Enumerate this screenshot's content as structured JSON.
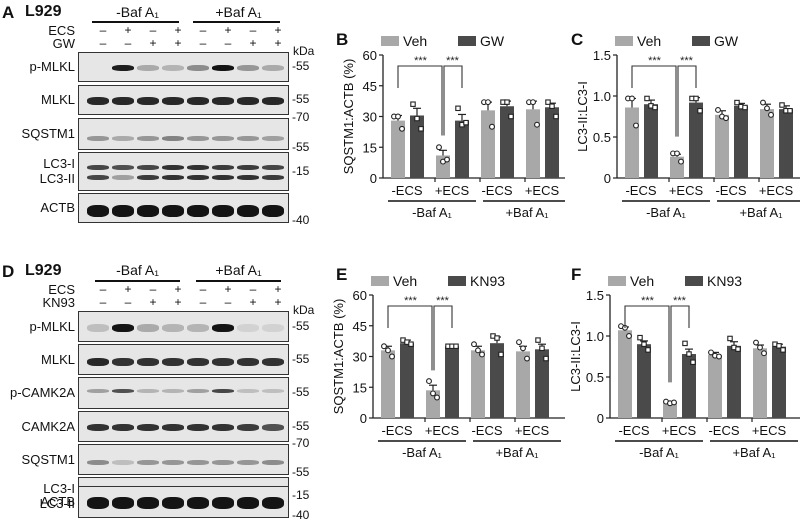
{
  "colors": {
    "veh": "#a8a8a8",
    "treat": "#4a4a4a",
    "blot_bg": "#e4e4e4",
    "band": "#1a1a1a"
  },
  "panelA": {
    "letter": "A",
    "cell_line": "L929",
    "groups": [
      "-Baf A₁",
      "+Baf A₁"
    ],
    "rows": [
      {
        "label": "ECS",
        "signs": [
          "–",
          "+",
          "–",
          "+",
          "–",
          "+",
          "–",
          "+"
        ]
      },
      {
        "label": "GW",
        "signs": [
          "–",
          "–",
          "+",
          "+",
          "–",
          "–",
          "+",
          "+"
        ]
      }
    ],
    "kda_header": "kDa",
    "blots": [
      {
        "label": "p-MLKL",
        "markers": [
          "-55"
        ]
      },
      {
        "label": "MLKL",
        "markers": [
          "-55"
        ]
      },
      {
        "label": "SQSTM1",
        "markers": [
          "-70",
          "-55"
        ]
      },
      {
        "label": "LC3-I\nLC3-II",
        "label1": "LC3-I",
        "label2": "LC3-II",
        "markers": [
          "-15"
        ]
      },
      {
        "label": "ACTB",
        "markers": [
          "-40"
        ]
      }
    ]
  },
  "panelD": {
    "letter": "D",
    "cell_line": "L929",
    "groups": [
      "-Baf A₁",
      "+Baf A₁"
    ],
    "rows": [
      {
        "label": "ECS",
        "signs": [
          "–",
          "+",
          "–",
          "+",
          "–",
          "+",
          "–",
          "+"
        ]
      },
      {
        "label": "KN93",
        "signs": [
          "–",
          "–",
          "+",
          "+",
          "–",
          "–",
          "+",
          "+"
        ]
      }
    ],
    "kda_header": "kDa",
    "blots": [
      {
        "label": "p-MLKL",
        "markers": [
          "-55"
        ]
      },
      {
        "label": "MLKL",
        "markers": [
          "-55"
        ]
      },
      {
        "label": "p-CAMK2A",
        "markers": [
          "-55"
        ]
      },
      {
        "label": "CAMK2A",
        "markers": [
          "-55"
        ]
      },
      {
        "label": "SQSTM1",
        "markers": [
          "-70",
          "-55"
        ]
      },
      {
        "label": "LC3-I\nLC3-II",
        "label1": "LC3-I",
        "label2": "LC3-II",
        "markers": [
          "-15"
        ]
      },
      {
        "label": "ACTB",
        "markers": [
          "-40"
        ]
      }
    ]
  },
  "chart_data": [
    {
      "panel": "B",
      "type": "bar",
      "title": "",
      "ylabel": "SQSTM1:ACTB (%)",
      "xlabel": "",
      "ylim": [
        0,
        60
      ],
      "yticks": [
        "0",
        "15",
        "30",
        "45",
        "60"
      ],
      "categories": [
        "-ECS",
        "+ECS",
        "-ECS",
        "+ECS"
      ],
      "group_labels": [
        "-Baf A₁",
        "+Baf A₁"
      ],
      "legend": [
        "Veh",
        "GW"
      ],
      "series": [
        {
          "name": "Veh",
          "values": [
            28,
            11,
            33,
            33.5
          ],
          "errors": [
            2.5,
            2.5,
            4,
            4
          ],
          "points": [
            [
              30,
              30,
              24
            ],
            [
              15,
              8,
              9
            ],
            [
              37,
              37,
              25
            ],
            [
              37,
              37,
              26
            ]
          ]
        },
        {
          "name": "GW",
          "values": [
            30.5,
            28,
            35,
            34.5
          ],
          "errors": [
            3.5,
            3,
            2.5,
            2
          ],
          "points": [
            [
              36,
              29,
              24
            ],
            [
              34,
              26,
              27
            ],
            [
              37,
              37,
              30
            ],
            [
              37,
              35,
              30
            ]
          ]
        }
      ],
      "significance": [
        {
          "from": "Veh -ECS (-Baf)",
          "to": "Veh +ECS (-Baf)",
          "label": "***"
        },
        {
          "from": "Veh +ECS (-Baf)",
          "to": "GW +ECS (-Baf)",
          "label": "***"
        }
      ],
      "grid": false,
      "legend_position": "top"
    },
    {
      "panel": "C",
      "type": "bar",
      "title": "",
      "ylabel": "LC3-II:LC3-I",
      "xlabel": "",
      "ylim": [
        0,
        1.5
      ],
      "yticks": [
        "0",
        "0.5",
        "1.0",
        "1.5"
      ],
      "categories": [
        "-ECS",
        "+ECS",
        "-ECS",
        "+ECS"
      ],
      "group_labels": [
        "-Baf A₁",
        "+Baf A₁"
      ],
      "legend": [
        "Veh",
        "GW"
      ],
      "series": [
        {
          "name": "Veh",
          "values": [
            0.86,
            0.26,
            0.77,
            0.84
          ],
          "errors": [
            0.11,
            0.03,
            0.05,
            0.06
          ],
          "points": [
            [
              0.97,
              0.97,
              0.64
            ],
            [
              0.3,
              0.3,
              0.2
            ],
            [
              0.83,
              0.75,
              0.73
            ],
            [
              0.92,
              0.85,
              0.77
            ]
          ]
        },
        {
          "name": "GW",
          "values": [
            0.9,
            0.92,
            0.88,
            0.84
          ],
          "errors": [
            0.05,
            0.06,
            0.03,
            0.04
          ],
          "points": [
            [
              0.97,
              0.88,
              0.86
            ],
            [
              0.97,
              0.97,
              0.82
            ],
            [
              0.92,
              0.87,
              0.86
            ],
            [
              0.89,
              0.82,
              0.82
            ]
          ]
        }
      ],
      "significance": [
        {
          "from": "Veh -ECS (-Baf)",
          "to": "Veh +ECS (-Baf)",
          "label": "***"
        },
        {
          "from": "Veh +ECS (-Baf)",
          "to": "GW +ECS (-Baf)",
          "label": "***"
        }
      ],
      "grid": false,
      "legend_position": "top"
    },
    {
      "panel": "E",
      "type": "bar",
      "title": "",
      "ylabel": "SQSTM1:ACTB (%)",
      "xlabel": "",
      "ylim": [
        0,
        60
      ],
      "yticks": [
        "0",
        "15",
        "30",
        "45",
        "60"
      ],
      "categories": [
        "-ECS",
        "+ECS",
        "-ECS",
        "+ECS"
      ],
      "group_labels": [
        "-Baf A₁",
        "+Baf A₁"
      ],
      "legend": [
        "Veh",
        "KN93"
      ],
      "series": [
        {
          "name": "Veh",
          "values": [
            33,
            13.5,
            33,
            32.5
          ],
          "errors": [
            2,
            2.5,
            2,
            2.5
          ],
          "points": [
            [
              35,
              33,
              30
            ],
            [
              18,
              12,
              10
            ],
            [
              36,
              33,
              31
            ],
            [
              37,
              34,
              29
            ]
          ]
        },
        {
          "name": "KN93",
          "values": [
            36.5,
            35,
            36.5,
            33.5
          ],
          "errors": [
            1.5,
            0.5,
            3,
            2.5
          ],
          "points": [
            [
              38,
              37,
              36
            ],
            [
              35,
              35,
              35
            ],
            [
              40,
              39,
              31
            ],
            [
              38,
              34,
              29
            ]
          ]
        }
      ],
      "significance": [
        {
          "from": "Veh -ECS (-Baf)",
          "to": "Veh +ECS (-Baf)",
          "label": "***"
        },
        {
          "from": "Veh +ECS (-Baf)",
          "to": "KN93 +ECS (-Baf)",
          "label": "***"
        }
      ],
      "grid": false,
      "legend_position": "top"
    },
    {
      "panel": "F",
      "type": "bar",
      "title": "",
      "ylabel": "LC3-II:LC3-I",
      "xlabel": "",
      "ylim": [
        0,
        1.5
      ],
      "yticks": [
        "0",
        "0.5",
        "1.0",
        "1.5"
      ],
      "categories": [
        "-ECS",
        "+ECS",
        "-ECS",
        "+ECS"
      ],
      "group_labels": [
        "-Baf A₁",
        "+Baf A₁"
      ],
      "legend": [
        "Veh",
        "KN93"
      ],
      "series": [
        {
          "name": "Veh",
          "values": [
            1.07,
            0.19,
            0.77,
            0.85
          ],
          "errors": [
            0.04,
            0.01,
            0.03,
            0.04
          ],
          "points": [
            [
              1.12,
              1.1,
              1.0
            ],
            [
              0.2,
              0.18,
              0.19
            ],
            [
              0.8,
              0.76,
              0.75
            ],
            [
              0.92,
              0.86,
              0.79
            ]
          ]
        },
        {
          "name": "KN93",
          "values": [
            0.9,
            0.78,
            0.88,
            0.87
          ],
          "errors": [
            0.04,
            0.06,
            0.05,
            0.03
          ],
          "points": [
            [
              0.98,
              0.9,
              0.83
            ],
            [
              0.91,
              0.78,
              0.68
            ],
            [
              0.97,
              0.86,
              0.84
            ],
            [
              0.9,
              0.88,
              0.83
            ]
          ]
        }
      ],
      "significance": [
        {
          "from": "Veh -ECS (-Baf)",
          "to": "Veh +ECS (-Baf)",
          "label": "***"
        },
        {
          "from": "Veh +ECS (-Baf)",
          "to": "KN93 +ECS (-Baf)",
          "label": "***"
        }
      ],
      "grid": false,
      "legend_position": "top"
    }
  ]
}
